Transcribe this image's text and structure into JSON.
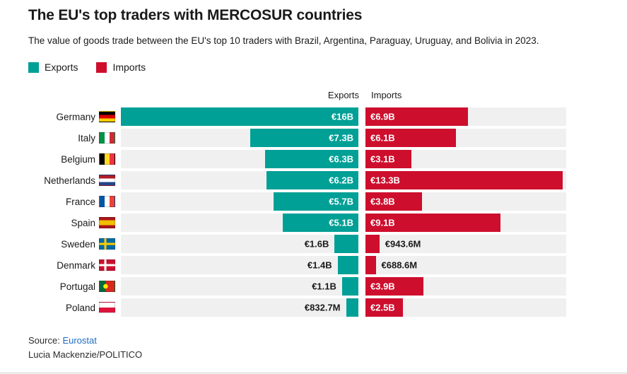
{
  "header": {
    "title": "The EU's top traders with MERCOSUR countries",
    "subtitle": "The value of goods trade between the EU's top 10 traders with Brazil, Argentina, Paraguay, Uruguay, and Bolivia in 2023."
  },
  "legend": {
    "items": [
      {
        "label": "Exports"
      },
      {
        "label": "Imports"
      }
    ]
  },
  "column_headers": {
    "exports": "Exports",
    "imports": "Imports"
  },
  "footer": {
    "source_prefix": "Source:",
    "source_link": "Eurostat",
    "credit": "Lucia Mackenzie/POLITICO"
  },
  "colors": {
    "exports": "#00a096",
    "imports": "#ce0e2d",
    "row_bg": "#f0f0f0",
    "link": "#1f6dc1"
  },
  "chart_data": {
    "type": "bar",
    "orientation": "horizontal-diverging",
    "title": "The EU's top traders with MERCOSUR countries",
    "unit": "EUR",
    "year": "2023",
    "categories": [
      "Germany",
      "Italy",
      "Belgium",
      "Netherlands",
      "France",
      "Spain",
      "Sweden",
      "Denmark",
      "Portugal",
      "Poland"
    ],
    "series": [
      {
        "name": "Exports",
        "labels": [
          "€16B",
          "€7.3B",
          "€6.3B",
          "€6.2B",
          "€5.7B",
          "€5.1B",
          "€1.6B",
          "€1.4B",
          "€1.1B",
          "€832.7M"
        ],
        "values_billion": [
          16,
          7.3,
          6.3,
          6.2,
          5.7,
          5.1,
          1.6,
          1.4,
          1.1,
          0.8327
        ]
      },
      {
        "name": "Imports",
        "labels": [
          "€6.9B",
          "€6.1B",
          "€3.1B",
          "€13.3B",
          "€3.8B",
          "€9.1B",
          "€943.6M",
          "€688.6M",
          "€3.9B",
          "€2.5B"
        ],
        "values_billion": [
          6.9,
          6.1,
          3.1,
          13.3,
          3.8,
          9.1,
          0.9436,
          0.6886,
          3.9,
          2.5
        ]
      }
    ],
    "x_max_billion": 16,
    "legend_position": "top-left",
    "grid": false
  }
}
